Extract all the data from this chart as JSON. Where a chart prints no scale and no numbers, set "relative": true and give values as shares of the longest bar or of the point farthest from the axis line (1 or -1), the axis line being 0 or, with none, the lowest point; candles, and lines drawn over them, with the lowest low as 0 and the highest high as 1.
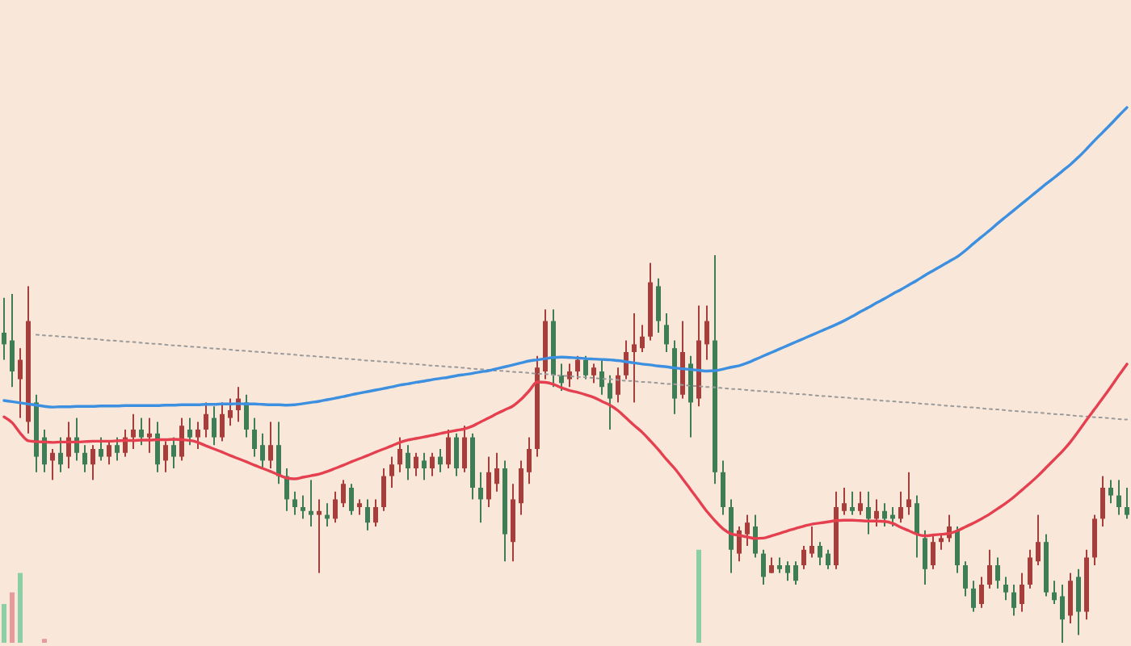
{
  "chart_data": {
    "type": "candlestick",
    "relative": true,
    "categories": [
      null,
      null,
      null,
      null,
      null,
      null,
      null,
      null,
      null,
      null,
      null,
      null,
      null,
      null,
      null,
      null,
      null,
      null,
      null,
      null,
      null,
      null,
      null,
      null,
      null,
      null,
      null,
      null,
      null,
      null,
      null,
      null,
      null,
      null,
      null,
      null,
      null,
      null,
      null,
      null,
      null,
      null,
      null,
      null,
      null,
      null,
      null,
      null,
      null,
      null,
      null,
      null,
      null,
      null,
      null,
      null,
      null,
      null,
      null,
      null,
      null,
      null,
      null,
      null,
      null,
      null,
      null,
      null,
      null,
      null,
      null,
      null,
      null,
      null,
      null,
      null,
      null,
      null,
      null,
      null,
      null,
      null,
      null,
      null,
      null,
      null,
      null,
      null,
      null,
      null,
      null,
      null,
      null,
      null,
      null,
      null,
      null,
      null,
      null,
      null,
      null,
      null,
      null,
      null,
      null,
      null,
      null,
      null,
      null,
      null,
      null,
      null,
      null,
      null,
      null,
      null,
      null,
      null,
      null,
      null,
      null,
      null,
      null,
      null,
      null,
      null,
      null,
      null,
      null,
      null,
      null,
      null,
      null,
      null,
      null,
      null,
      null,
      null,
      null,
      null
    ],
    "ohlc": [
      [
        0.8,
        0.89,
        0.73,
        0.77
      ],
      [
        0.78,
        0.9,
        0.66,
        0.7
      ],
      [
        0.68,
        0.76,
        0.58,
        0.73
      ],
      [
        0.57,
        0.92,
        0.54,
        0.83
      ],
      [
        0.62,
        0.64,
        0.44,
        0.48
      ],
      [
        0.53,
        0.55,
        0.44,
        0.46
      ],
      [
        0.47,
        0.5,
        0.42,
        0.49
      ],
      [
        0.49,
        0.53,
        0.44,
        0.46
      ],
      [
        0.48,
        0.57,
        0.45,
        0.53
      ],
      [
        0.53,
        0.58,
        0.47,
        0.49
      ],
      [
        0.49,
        0.51,
        0.44,
        0.46
      ],
      [
        0.46,
        0.51,
        0.42,
        0.5
      ],
      [
        0.5,
        0.53,
        0.47,
        0.48
      ],
      [
        0.48,
        0.52,
        0.46,
        0.51
      ],
      [
        0.51,
        0.53,
        0.47,
        0.49
      ],
      [
        0.49,
        0.55,
        0.48,
        0.53
      ],
      [
        0.53,
        0.59,
        0.5,
        0.55
      ],
      [
        0.55,
        0.58,
        0.51,
        0.53
      ],
      [
        0.53,
        0.58,
        0.49,
        0.54
      ],
      [
        0.54,
        0.57,
        0.44,
        0.46
      ],
      [
        0.47,
        0.52,
        0.44,
        0.51
      ],
      [
        0.51,
        0.53,
        0.45,
        0.48
      ],
      [
        0.48,
        0.58,
        0.47,
        0.56
      ],
      [
        0.55,
        0.58,
        0.51,
        0.53
      ],
      [
        0.53,
        0.57,
        0.5,
        0.55
      ],
      [
        0.55,
        0.62,
        0.53,
        0.59
      ],
      [
        0.58,
        0.61,
        0.51,
        0.53
      ],
      [
        0.53,
        0.62,
        0.52,
        0.59
      ],
      [
        0.58,
        0.63,
        0.56,
        0.6
      ],
      [
        0.6,
        0.66,
        0.57,
        0.63
      ],
      [
        0.62,
        0.64,
        0.53,
        0.55
      ],
      [
        0.55,
        0.58,
        0.48,
        0.5
      ],
      [
        0.51,
        0.54,
        0.45,
        0.47
      ],
      [
        0.47,
        0.57,
        0.45,
        0.51
      ],
      [
        0.51,
        0.57,
        0.41,
        0.43
      ],
      [
        0.43,
        0.45,
        0.34,
        0.37
      ],
      [
        0.37,
        0.39,
        0.33,
        0.35
      ],
      [
        0.35,
        0.38,
        0.32,
        0.34
      ],
      [
        0.34,
        0.42,
        0.3,
        0.33
      ],
      [
        0.33,
        0.37,
        0.18,
        0.34
      ],
      [
        0.33,
        0.36,
        0.3,
        0.32
      ],
      [
        0.32,
        0.39,
        0.31,
        0.37
      ],
      [
        0.36,
        0.42,
        0.35,
        0.41
      ],
      [
        0.4,
        0.41,
        0.33,
        0.34
      ],
      [
        0.35,
        0.37,
        0.33,
        0.36
      ],
      [
        0.35,
        0.37,
        0.29,
        0.31
      ],
      [
        0.31,
        0.37,
        0.3,
        0.35
      ],
      [
        0.35,
        0.45,
        0.34,
        0.43
      ],
      [
        0.43,
        0.48,
        0.4,
        0.46
      ],
      [
        0.46,
        0.53,
        0.44,
        0.5
      ],
      [
        0.49,
        0.51,
        0.42,
        0.45
      ],
      [
        0.45,
        0.49,
        0.43,
        0.48
      ],
      [
        0.47,
        0.49,
        0.42,
        0.45
      ],
      [
        0.45,
        0.49,
        0.43,
        0.48
      ],
      [
        0.48,
        0.5,
        0.44,
        0.46
      ],
      [
        0.46,
        0.55,
        0.45,
        0.53
      ],
      [
        0.53,
        0.54,
        0.43,
        0.45
      ],
      [
        0.45,
        0.56,
        0.44,
        0.53
      ],
      [
        0.53,
        0.54,
        0.37,
        0.4
      ],
      [
        0.4,
        0.44,
        0.31,
        0.37
      ],
      [
        0.37,
        0.48,
        0.35,
        0.44
      ],
      [
        0.41,
        0.49,
        0.39,
        0.45
      ],
      [
        0.45,
        0.47,
        0.21,
        0.28
      ],
      [
        0.26,
        0.41,
        0.21,
        0.37
      ],
      [
        0.36,
        0.47,
        0.33,
        0.45
      ],
      [
        0.44,
        0.53,
        0.41,
        0.5
      ],
      [
        0.5,
        0.74,
        0.48,
        0.71
      ],
      [
        0.7,
        0.86,
        0.68,
        0.83
      ],
      [
        0.83,
        0.86,
        0.66,
        0.69
      ],
      [
        0.69,
        0.72,
        0.65,
        0.67
      ],
      [
        0.68,
        0.72,
        0.66,
        0.7
      ],
      [
        0.7,
        0.74,
        0.68,
        0.73
      ],
      [
        0.73,
        0.74,
        0.68,
        0.69
      ],
      [
        0.69,
        0.72,
        0.67,
        0.71
      ],
      [
        0.7,
        0.73,
        0.64,
        0.66
      ],
      [
        0.67,
        0.69,
        0.55,
        0.63
      ],
      [
        0.64,
        0.71,
        0.62,
        0.69
      ],
      [
        0.69,
        0.78,
        0.68,
        0.75
      ],
      [
        0.75,
        0.85,
        0.62,
        0.77
      ],
      [
        0.76,
        0.82,
        0.75,
        0.79
      ],
      [
        0.79,
        0.98,
        0.78,
        0.93
      ],
      [
        0.92,
        0.94,
        0.8,
        0.83
      ],
      [
        0.82,
        0.85,
        0.75,
        0.77
      ],
      [
        0.76,
        0.78,
        0.59,
        0.63
      ],
      [
        0.64,
        0.83,
        0.63,
        0.75
      ],
      [
        0.72,
        0.74,
        0.53,
        0.62
      ],
      [
        0.63,
        0.87,
        0.61,
        0.78
      ],
      [
        0.77,
        0.87,
        0.73,
        0.83
      ],
      [
        0.78,
        1.0,
        0.41,
        0.44
      ],
      [
        0.44,
        0.47,
        0.33,
        0.35
      ],
      [
        0.35,
        0.37,
        0.18,
        0.24
      ],
      [
        0.23,
        0.3,
        0.21,
        0.29
      ],
      [
        0.28,
        0.33,
        0.25,
        0.31
      ],
      [
        0.3,
        0.33,
        0.22,
        0.23
      ],
      [
        0.23,
        0.24,
        0.15,
        0.17
      ],
      [
        0.18,
        0.22,
        0.18,
        0.2
      ],
      [
        0.2,
        0.22,
        0.18,
        0.19
      ],
      [
        0.2,
        0.21,
        0.16,
        0.18
      ],
      [
        0.2,
        0.21,
        0.15,
        0.16
      ],
      [
        0.2,
        0.25,
        0.19,
        0.24
      ],
      [
        0.23,
        0.3,
        0.22,
        0.25
      ],
      [
        0.25,
        0.26,
        0.2,
        0.22
      ],
      [
        0.23,
        0.24,
        0.19,
        0.2
      ],
      [
        0.2,
        0.39,
        0.19,
        0.35
      ],
      [
        0.34,
        0.4,
        0.33,
        0.36
      ],
      [
        0.35,
        0.39,
        0.33,
        0.34
      ],
      [
        0.34,
        0.39,
        0.33,
        0.36
      ],
      [
        0.35,
        0.39,
        0.28,
        0.32
      ],
      [
        0.32,
        0.37,
        0.3,
        0.34
      ],
      [
        0.34,
        0.36,
        0.3,
        0.32
      ],
      [
        0.33,
        0.35,
        0.3,
        0.32
      ],
      [
        0.32,
        0.39,
        0.31,
        0.35
      ],
      [
        0.35,
        0.44,
        0.33,
        0.37
      ],
      [
        0.36,
        0.38,
        0.22,
        0.28
      ],
      [
        0.27,
        0.29,
        0.15,
        0.19
      ],
      [
        0.2,
        0.28,
        0.19,
        0.26
      ],
      [
        0.26,
        0.28,
        0.24,
        0.27
      ],
      [
        0.27,
        0.33,
        0.26,
        0.3
      ],
      [
        0.29,
        0.3,
        0.18,
        0.2
      ],
      [
        0.2,
        0.21,
        0.12,
        0.14
      ],
      [
        0.14,
        0.16,
        0.08,
        0.09
      ],
      [
        0.1,
        0.17,
        0.09,
        0.15
      ],
      [
        0.15,
        0.24,
        0.14,
        0.2
      ],
      [
        0.2,
        0.22,
        0.14,
        0.16
      ],
      [
        0.15,
        0.17,
        0.11,
        0.13
      ],
      [
        0.13,
        0.15,
        0.07,
        0.09
      ],
      [
        0.1,
        0.18,
        0.08,
        0.15
      ],
      [
        0.15,
        0.24,
        0.14,
        0.22
      ],
      [
        0.21,
        0.33,
        0.2,
        0.26
      ],
      [
        0.26,
        0.28,
        0.12,
        0.13
      ],
      [
        0.13,
        0.16,
        0.1,
        0.11
      ],
      [
        0.12,
        0.15,
        0.0,
        0.06
      ],
      [
        0.07,
        0.18,
        0.05,
        0.16
      ],
      [
        0.17,
        0.19,
        0.02,
        0.08
      ],
      [
        0.08,
        0.24,
        0.06,
        0.22
      ],
      [
        0.22,
        0.33,
        0.2,
        0.32
      ],
      [
        0.32,
        0.43,
        0.3,
        0.4
      ],
      [
        0.4,
        0.42,
        0.36,
        0.38
      ],
      [
        0.38,
        0.42,
        0.33,
        0.35
      ],
      [
        0.35,
        0.4,
        0.32,
        0.33
      ]
    ],
    "colors": [
      "#3f7d56",
      "#3f7d56",
      "#a63f3b",
      "#a63f3b",
      "#3f7d56",
      "#3f7d56",
      "#a63f3b",
      "#3f7d56",
      "#a63f3b",
      "#3f7d56",
      "#3f7d56",
      "#a63f3b",
      "#3f7d56",
      "#a63f3b",
      "#3f7d56",
      "#a63f3b",
      "#a63f3b",
      "#3f7d56",
      "#a63f3b",
      "#3f7d56",
      "#a63f3b",
      "#3f7d56",
      "#a63f3b",
      "#3f7d56",
      "#a63f3b",
      "#a63f3b",
      "#3f7d56",
      "#a63f3b",
      "#a63f3b",
      "#a63f3b",
      "#3f7d56",
      "#3f7d56",
      "#3f7d56",
      "#a63f3b",
      "#3f7d56",
      "#3f7d56",
      "#3f7d56",
      "#3f7d56",
      "#3f7d56",
      "#a63f3b",
      "#3f7d56",
      "#a63f3b",
      "#a63f3b",
      "#3f7d56",
      "#a63f3b",
      "#3f7d56",
      "#a63f3b",
      "#a63f3b",
      "#a63f3b",
      "#a63f3b",
      "#3f7d56",
      "#a63f3b",
      "#3f7d56",
      "#a63f3b",
      "#3f7d56",
      "#a63f3b",
      "#3f7d56",
      "#a63f3b",
      "#3f7d56",
      "#3f7d56",
      "#a63f3b",
      "#a63f3b",
      "#3f7d56",
      "#a63f3b",
      "#a63f3b",
      "#a63f3b",
      "#a63f3b",
      "#a63f3b",
      "#3f7d56",
      "#3f7d56",
      "#a63f3b",
      "#a63f3b",
      "#3f7d56",
      "#a63f3b",
      "#3f7d56",
      "#3f7d56",
      "#a63f3b",
      "#a63f3b",
      "#a63f3b",
      "#a63f3b",
      "#a63f3b",
      "#3f7d56",
      "#3f7d56",
      "#3f7d56",
      "#a63f3b",
      "#3f7d56",
      "#a63f3b",
      "#a63f3b",
      "#3f7d56",
      "#3f7d56",
      "#3f7d56",
      "#a63f3b",
      "#a63f3b",
      "#3f7d56",
      "#3f7d56",
      "#a63f3b",
      "#3f7d56",
      "#3f7d56",
      "#3f7d56",
      "#a63f3b",
      "#a63f3b",
      "#3f7d56",
      "#3f7d56",
      "#a63f3b",
      "#a63f3b",
      "#3f7d56",
      "#a63f3b",
      "#3f7d56",
      "#a63f3b",
      "#3f7d56",
      "#3f7d56",
      "#a63f3b",
      "#a63f3b",
      "#3f7d56",
      "#3f7d56",
      "#a63f3b",
      "#a63f3b",
      "#a63f3b",
      "#3f7d56",
      "#3f7d56",
      "#3f7d56",
      "#a63f3b",
      "#a63f3b",
      "#3f7d56",
      "#3f7d56",
      "#3f7d56",
      "#a63f3b",
      "#a63f3b",
      "#a63f3b",
      "#3f7d56",
      "#3f7d56",
      "#3f7d56",
      "#a63f3b",
      "#3f7d56",
      "#a63f3b",
      "#a63f3b",
      "#a63f3b",
      "#3f7d56",
      "#3f7d56",
      "#3f7d56"
    ],
    "series": [
      {
        "type": "bar",
        "values": [
          0.1,
          0.13,
          0.18,
          null,
          null,
          0.01,
          null,
          null,
          null,
          null,
          null,
          null,
          null,
          null,
          null,
          null,
          null,
          null,
          null,
          null,
          null,
          null,
          null,
          null,
          null,
          null,
          null,
          null,
          null,
          null,
          null,
          null,
          null,
          null,
          null,
          null,
          null,
          null,
          null,
          null,
          null,
          null,
          null,
          null,
          null,
          null,
          null,
          null,
          null,
          null,
          null,
          null,
          null,
          null,
          null,
          null,
          null,
          null,
          null,
          null,
          null,
          null,
          null,
          null,
          null,
          null,
          null,
          null,
          null,
          null,
          null,
          null,
          null,
          null,
          null,
          null,
          null,
          null,
          null,
          null,
          null,
          null,
          null,
          null,
          null,
          null,
          0.24,
          null,
          null,
          null,
          null,
          null,
          null,
          null,
          null,
          null,
          null,
          null,
          null,
          null,
          null,
          null,
          null,
          null,
          null,
          null,
          null,
          null,
          null,
          null,
          null,
          null,
          null,
          null,
          null,
          null,
          null,
          null,
          null,
          null,
          null,
          null,
          null,
          null,
          null,
          null,
          null,
          null,
          null,
          null,
          null,
          null,
          null,
          null,
          null,
          null,
          null,
          null,
          null,
          null
        ],
        "colors": [
          "#8ccfa6",
          "#e39b9b",
          "#8ccfa6",
          null,
          null,
          "#e39b9b",
          null,
          null,
          null,
          null,
          null,
          null,
          null,
          null,
          null,
          null,
          null,
          null,
          null,
          null,
          null,
          null,
          null,
          null,
          null,
          null,
          null,
          null,
          null,
          null,
          null,
          null,
          null,
          null,
          null,
          null,
          null,
          null,
          null,
          null,
          null,
          null,
          null,
          null,
          null,
          null,
          null,
          null,
          null,
          null,
          null,
          null,
          null,
          null,
          null,
          null,
          null,
          null,
          null,
          null,
          null,
          null,
          null,
          null,
          null,
          null,
          null,
          null,
          null,
          null,
          null,
          null,
          null,
          null,
          null,
          null,
          null,
          null,
          null,
          null,
          null,
          null,
          null,
          null,
          null,
          null,
          "#8ccfa6",
          null,
          null,
          null,
          null,
          null,
          null,
          null,
          null,
          null,
          null,
          null,
          null,
          null,
          null,
          null,
          null,
          null,
          null,
          null,
          null,
          null,
          null,
          null,
          null,
          null,
          null,
          null,
          null,
          null,
          null,
          null,
          null,
          null,
          null,
          null,
          null,
          null,
          null,
          null,
          null,
          null,
          null,
          null,
          null,
          null,
          null,
          null,
          null,
          null,
          null,
          null,
          null,
          null
        ]
      },
      {
        "type": "line",
        "color": "#9a9a9a",
        "line_style": "dotted",
        "values": [
          null,
          null,
          null,
          null,
          0.795,
          0.793,
          0.792,
          0.79,
          0.789,
          0.787,
          0.785,
          0.784,
          0.782,
          0.78,
          0.779,
          0.777,
          0.776,
          0.774,
          0.772,
          0.771,
          0.769,
          0.767,
          0.766,
          0.764,
          0.763,
          0.761,
          0.759,
          0.758,
          0.756,
          0.754,
          0.753,
          0.751,
          0.75,
          0.748,
          0.746,
          0.745,
          0.743,
          0.741,
          0.74,
          0.738,
          0.737,
          0.735,
          0.733,
          0.732,
          0.73,
          0.728,
          0.727,
          0.725,
          0.724,
          0.722,
          0.72,
          0.719,
          0.717,
          0.715,
          0.714,
          0.712,
          0.711,
          0.709,
          0.707,
          0.706,
          0.704,
          0.702,
          0.701,
          0.699,
          0.698,
          0.696,
          0.694,
          0.693,
          0.691,
          0.689,
          0.688,
          0.686,
          0.685,
          0.683,
          0.681,
          0.68,
          0.678,
          0.676,
          0.675,
          0.673,
          0.672,
          0.67,
          0.668,
          0.667,
          0.665,
          0.663,
          0.662,
          0.66,
          0.659,
          0.657,
          0.655,
          0.654,
          0.652,
          0.65,
          0.649,
          0.647,
          0.646,
          0.644,
          0.642,
          0.641,
          0.639,
          0.637,
          0.636,
          0.634,
          0.633,
          0.631,
          0.629,
          0.628,
          0.626,
          0.624,
          0.623,
          0.621,
          0.62,
          0.618,
          0.616,
          0.615,
          0.613,
          0.611,
          0.61,
          0.608,
          0.607,
          0.605,
          0.603,
          0.602,
          0.6,
          0.598,
          0.597,
          0.595,
          0.594,
          0.592,
          0.59,
          0.589,
          0.587,
          0.585,
          0.584,
          0.582,
          0.581,
          0.579,
          0.577,
          0.576
        ]
      },
      {
        "type": "line",
        "color": "#3d8fe0",
        "line_style": "solid",
        "values": [
          0.625,
          0.622,
          0.619,
          0.616,
          0.613,
          0.61,
          0.608,
          0.609,
          0.609,
          0.61,
          0.61,
          0.61,
          0.611,
          0.611,
          0.611,
          0.612,
          0.612,
          0.612,
          0.612,
          0.612,
          0.613,
          0.613,
          0.614,
          0.614,
          0.614,
          0.615,
          0.615,
          0.616,
          0.616,
          0.617,
          0.616,
          0.616,
          0.615,
          0.614,
          0.614,
          0.613,
          0.614,
          0.617,
          0.62,
          0.623,
          0.627,
          0.631,
          0.635,
          0.64,
          0.644,
          0.648,
          0.652,
          0.656,
          0.66,
          0.665,
          0.668,
          0.672,
          0.675,
          0.679,
          0.682,
          0.685,
          0.689,
          0.692,
          0.695,
          0.699,
          0.702,
          0.707,
          0.712,
          0.717,
          0.722,
          0.727,
          0.73,
          0.733,
          0.736,
          0.737,
          0.736,
          0.735,
          0.733,
          0.732,
          0.731,
          0.73,
          0.728,
          0.725,
          0.722,
          0.719,
          0.717,
          0.714,
          0.712,
          0.709,
          0.707,
          0.705,
          0.703,
          0.701,
          0.702,
          0.706,
          0.711,
          0.715,
          0.722,
          0.731,
          0.74,
          0.749,
          0.758,
          0.767,
          0.776,
          0.785,
          0.794,
          0.803,
          0.812,
          0.821,
          0.831,
          0.842,
          0.854,
          0.865,
          0.877,
          0.888,
          0.9,
          0.911,
          0.923,
          0.935,
          0.948,
          0.96,
          0.972,
          0.984,
          0.996,
          1.012,
          1.03,
          1.047,
          1.064,
          1.082,
          1.099,
          1.116,
          1.133,
          1.15,
          1.167,
          1.184,
          1.2,
          1.217,
          1.234,
          1.253,
          1.274,
          1.296,
          1.317,
          1.338,
          1.36,
          1.381
        ]
      },
      {
        "type": "line",
        "color": "#e5404f",
        "line_style": "solid",
        "values": [
          0.583,
          0.568,
          0.541,
          0.521,
          0.519,
          0.518,
          0.517,
          0.518,
          0.518,
          0.518,
          0.519,
          0.52,
          0.52,
          0.52,
          0.521,
          0.522,
          0.522,
          0.523,
          0.523,
          0.524,
          0.524,
          0.525,
          0.524,
          0.522,
          0.517,
          0.508,
          0.5,
          0.492,
          0.483,
          0.475,
          0.467,
          0.458,
          0.45,
          0.442,
          0.433,
          0.425,
          0.423,
          0.427,
          0.431,
          0.435,
          0.442,
          0.45,
          0.458,
          0.467,
          0.475,
          0.483,
          0.492,
          0.5,
          0.508,
          0.517,
          0.523,
          0.527,
          0.531,
          0.535,
          0.54,
          0.544,
          0.548,
          0.552,
          0.559,
          0.57,
          0.58,
          0.591,
          0.601,
          0.611,
          0.628,
          0.65,
          0.673,
          0.672,
          0.667,
          0.658,
          0.651,
          0.646,
          0.64,
          0.633,
          0.623,
          0.613,
          0.599,
          0.58,
          0.561,
          0.543,
          0.521,
          0.498,
          0.473,
          0.45,
          0.423,
          0.395,
          0.367,
          0.339,
          0.315,
          0.294,
          0.281,
          0.277,
          0.273,
          0.269,
          0.27,
          0.276,
          0.282,
          0.289,
          0.295,
          0.301,
          0.306,
          0.309,
          0.312,
          0.315,
          0.316,
          0.316,
          0.315,
          0.314,
          0.314,
          0.313,
          0.308,
          0.298,
          0.289,
          0.28,
          0.276,
          0.278,
          0.28,
          0.282,
          0.289,
          0.299,
          0.309,
          0.32,
          0.332,
          0.346,
          0.36,
          0.376,
          0.394,
          0.412,
          0.431,
          0.452,
          0.473,
          0.494,
          0.518,
          0.546,
          0.575,
          0.603,
          0.631,
          0.66,
          0.69,
          0.719
        ]
      }
    ]
  }
}
